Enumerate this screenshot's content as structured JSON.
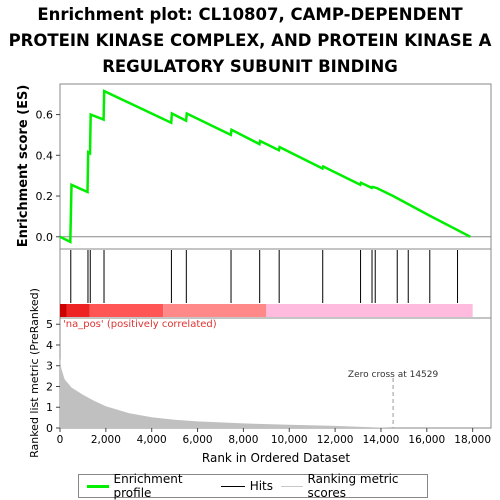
{
  "title": "Enrichment plot: CL10807, CAMP-DEPENDENT PROTEIN KINASE COMPLEX, AND PROTEIN KINASE A REGULATORY SUBUNIT BINDING",
  "colors": {
    "es_line": "#00ee00",
    "hits": "#000000",
    "ranking_fill": "#c0c0c0",
    "pos_red": "#ee2222",
    "pos_pink": "#ffaacc",
    "label_red": "#dd3333"
  },
  "chart_data": {
    "type": "line",
    "top_panel": {
      "ylabel": "Enrichment score (ES)",
      "yticks": [
        0.0,
        0.2,
        0.4,
        0.6
      ],
      "ylim": [
        -0.06,
        0.75
      ],
      "series": [
        {
          "name": "Enrichment profile",
          "x": [
            0,
            450,
            500,
            1200,
            1230,
            1310,
            1340,
            1900,
            1930,
            4850,
            4880,
            5500,
            5530,
            7450,
            7480,
            8700,
            8730,
            9550,
            9580,
            11450,
            11480,
            13100,
            13130,
            13600,
            13630,
            13800,
            14529,
            16100,
            17900
          ],
          "y": [
            0.0,
            -0.025,
            0.255,
            0.22,
            0.415,
            0.41,
            0.6,
            0.575,
            0.715,
            0.56,
            0.605,
            0.57,
            0.605,
            0.5,
            0.525,
            0.455,
            0.47,
            0.425,
            0.44,
            0.335,
            0.345,
            0.255,
            0.265,
            0.24,
            0.245,
            0.24,
            0.2,
            0.105,
            0.0
          ]
        }
      ]
    },
    "hits": [
      470,
      1220,
      1320,
      1920,
      4860,
      5510,
      7460,
      8710,
      9560,
      11460,
      13110,
      13610,
      13750,
      14710,
      15190,
      16130,
      17340
    ],
    "ranked_list": {
      "ylabel": "Ranked list metric (PreRanked)",
      "xlabel": "Rank in Ordered Dataset",
      "yticks": [
        0,
        1,
        2,
        3,
        4,
        5
      ],
      "ylim": [
        0,
        5.3
      ],
      "xticks": [
        0,
        2000,
        4000,
        6000,
        8000,
        10000,
        12000,
        14000,
        16000,
        18000
      ],
      "xlim": [
        0,
        18800
      ],
      "n_genes": 18000,
      "zero_cross": 14529,
      "zero_cross_label": "Zero cross at 14529",
      "pos_label": "'na_pos' (positively correlated)",
      "profile_x": [
        0,
        50,
        200,
        500,
        1000,
        1500,
        2000,
        3000,
        4000,
        5000,
        6000,
        8000,
        10000,
        12000,
        14529,
        18000
      ],
      "profile_y": [
        3.4,
        2.9,
        2.35,
        1.95,
        1.6,
        1.3,
        1.05,
        0.72,
        0.52,
        0.4,
        0.32,
        0.22,
        0.16,
        0.1,
        0.0,
        0.0
      ]
    },
    "color_bar": {
      "segments": [
        {
          "from": 0,
          "to": 300,
          "color": "#cc0000"
        },
        {
          "from": 300,
          "to": 1300,
          "color": "#ee2222"
        },
        {
          "from": 1300,
          "to": 4500,
          "color": "#ff5555"
        },
        {
          "from": 4500,
          "to": 9000,
          "color": "#ff8888"
        },
        {
          "from": 9000,
          "to": 18000,
          "color": "#ffbbdd"
        }
      ]
    }
  },
  "legend": {
    "entries": [
      "Enrichment profile",
      "Hits",
      "Ranking metric scores"
    ]
  }
}
